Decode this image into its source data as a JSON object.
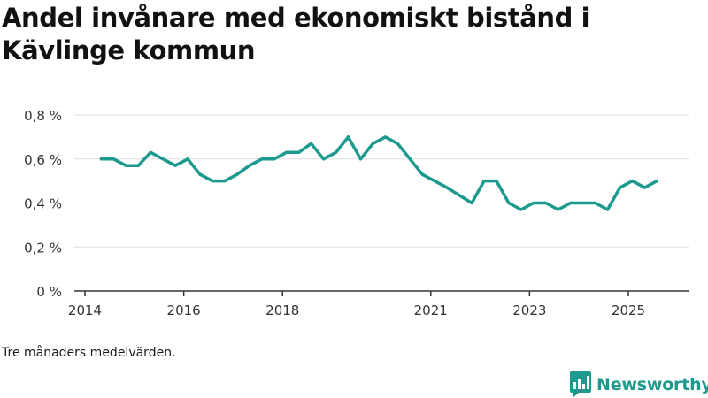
{
  "title": "Andel invånare med ekonomiskt bistånd i Kävlinge kommun",
  "footnote": "Tre månaders medelvärden.",
  "brand": {
    "name": "Newsworthy",
    "icon": "newsworthy-logo-icon",
    "color": "#1d9a8d"
  },
  "chart_data": {
    "type": "line",
    "title": "Andel invånare med ekonomiskt bistånd i Kävlinge kommun",
    "xlabel": "",
    "ylabel": "",
    "ylim": [
      0,
      0.8
    ],
    "xlim": [
      2014.0,
      2026.0
    ],
    "yticks": [
      0,
      0.2,
      0.4,
      0.6,
      0.8
    ],
    "ytick_labels": [
      "0 %",
      "0,2 %",
      "0,4 %",
      "0,6 %",
      "0,8 %"
    ],
    "xticks": [
      2014,
      2016,
      2018,
      2021,
      2023,
      2025
    ],
    "xtick_labels": [
      "2014",
      "2016",
      "2018",
      "2021",
      "2023",
      "2025"
    ],
    "grid": true,
    "line_color": "#1d9a8d",
    "series": [
      {
        "name": "Andel invånare med ekonomiskt bistånd",
        "x": [
          2014.33,
          2014.58,
          2014.83,
          2015.08,
          2015.33,
          2015.58,
          2015.83,
          2016.08,
          2016.33,
          2016.58,
          2016.83,
          2017.08,
          2017.33,
          2017.58,
          2017.83,
          2018.08,
          2018.33,
          2018.58,
          2018.83,
          2019.08,
          2019.33,
          2019.58,
          2019.83,
          2020.08,
          2020.33,
          2020.58,
          2020.83,
          2021.33,
          2021.83,
          2022.08,
          2022.33,
          2022.58,
          2022.83,
          2023.08,
          2023.33,
          2023.58,
          2023.83,
          2024.08,
          2024.33,
          2024.58,
          2024.83,
          2025.08,
          2025.33,
          2025.58
        ],
        "values": [
          0.6,
          0.6,
          0.57,
          0.57,
          0.63,
          0.6,
          0.57,
          0.6,
          0.53,
          0.5,
          0.5,
          0.53,
          0.57,
          0.6,
          0.6,
          0.63,
          0.63,
          0.67,
          0.6,
          0.63,
          0.7,
          0.6,
          0.67,
          0.7,
          0.67,
          0.6,
          0.53,
          0.47,
          0.4,
          0.5,
          0.5,
          0.4,
          0.37,
          0.4,
          0.4,
          0.37,
          0.4,
          0.4,
          0.4,
          0.37,
          0.47,
          0.5,
          0.47,
          0.5
        ]
      }
    ]
  }
}
